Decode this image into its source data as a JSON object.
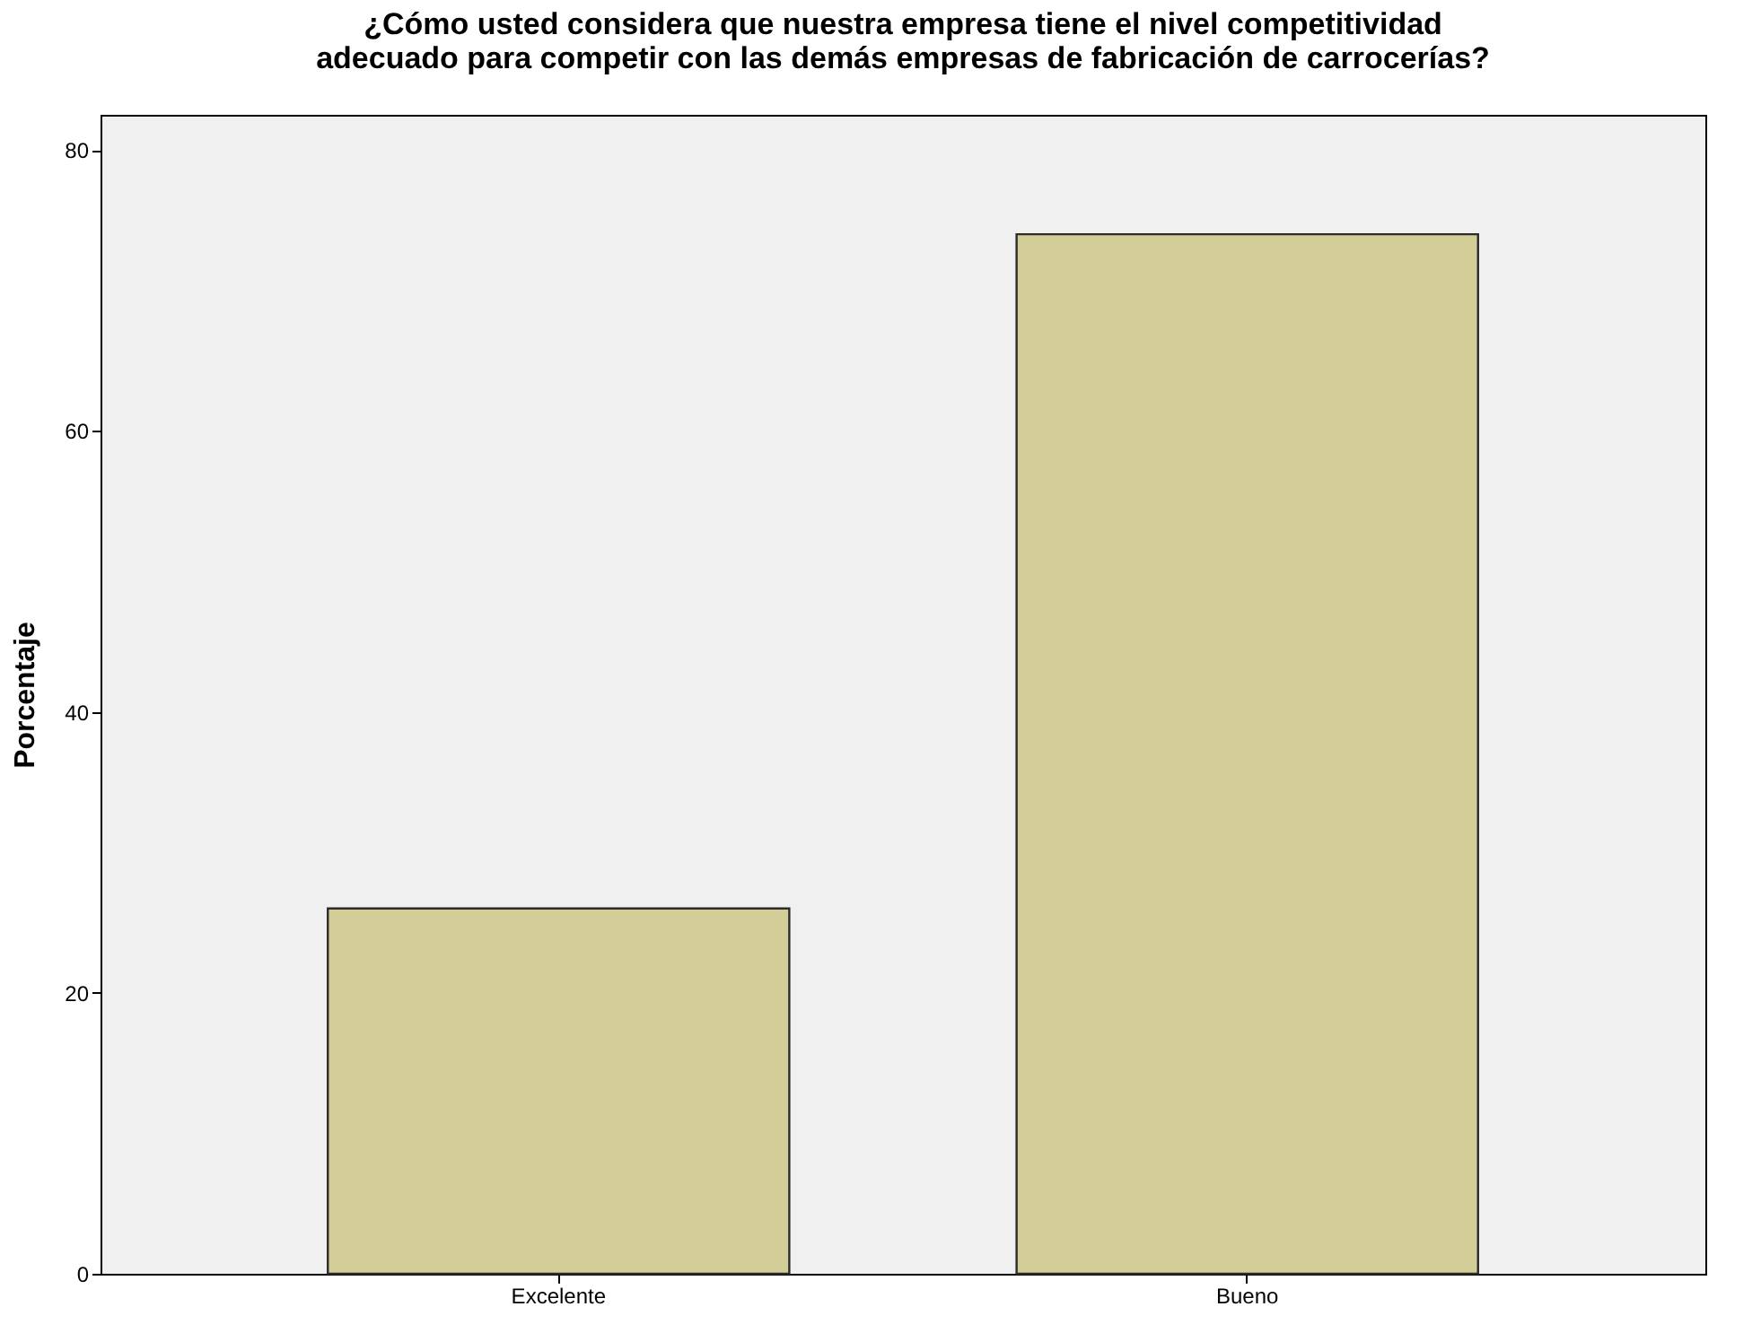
{
  "chart_data": {
    "type": "bar",
    "title": "¿Cómo usted considera que nuestra empresa tiene el nivel competitividad\nadecuado para competir con las demás empresas de fabricación de carrocerías?",
    "ylabel": "Porcentaje",
    "categories": [
      "Excelente",
      "Bueno"
    ],
    "values": [
      26,
      74
    ],
    "color": "#d3ce97",
    "ylim": [
      0,
      82.5
    ],
    "yticks": [
      0,
      20,
      40,
      60,
      80
    ],
    "grid": false
  }
}
